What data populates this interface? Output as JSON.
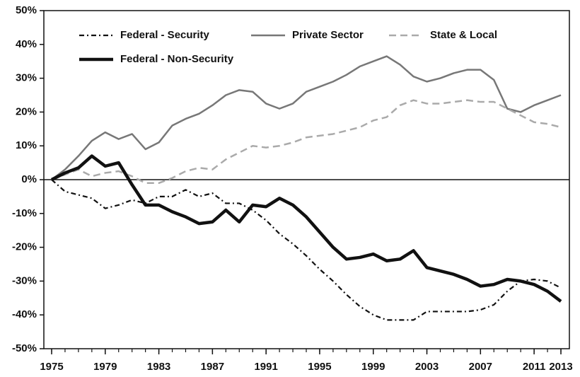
{
  "chart_data": {
    "type": "line",
    "x": [
      1975,
      1976,
      1977,
      1978,
      1979,
      1980,
      1981,
      1982,
      1983,
      1984,
      1985,
      1986,
      1987,
      1988,
      1989,
      1990,
      1991,
      1992,
      1993,
      1994,
      1995,
      1996,
      1997,
      1998,
      1999,
      2000,
      2001,
      2002,
      2003,
      2004,
      2005,
      2006,
      2007,
      2008,
      2009,
      2010,
      2011,
      2012,
      2013
    ],
    "series": [
      {
        "name": "Federal - Security",
        "color": "#111111",
        "style": "dashdot",
        "values": [
          0,
          -3.5,
          -4.5,
          -5.5,
          -8.5,
          -7.5,
          -6,
          -7,
          -5,
          -5,
          -3,
          -5,
          -4,
          -7,
          -7,
          -9,
          -12,
          -16,
          -19,
          -22.5,
          -26.5,
          -30,
          -34,
          -37.5,
          -40,
          -41.5,
          -41.5,
          -41.5,
          -39,
          -39,
          -39,
          -39,
          -38.5,
          -37,
          -33,
          -30,
          -29.5,
          -30,
          -32
        ]
      },
      {
        "name": "Private Sector",
        "color": "#777777",
        "style": "solid",
        "values": [
          0,
          3,
          7,
          11.5,
          14,
          12,
          13.5,
          9,
          11,
          16,
          18,
          19.5,
          22,
          25,
          26.5,
          26,
          22.5,
          21,
          22.5,
          26,
          27.5,
          29,
          31,
          33.5,
          35,
          36.5,
          34,
          30.5,
          29,
          30,
          31.5,
          32.5,
          32.5,
          29.5,
          21,
          20,
          22,
          23.5,
          25
        ]
      },
      {
        "name": "State & Local",
        "color": "#aaaaaa",
        "style": "dashed",
        "values": [
          0,
          1.5,
          3,
          1,
          2,
          2.5,
          1,
          -1,
          -1,
          0.5,
          2.5,
          3.5,
          3,
          6,
          8,
          10,
          9.5,
          10,
          11,
          12.5,
          13,
          13.5,
          14.5,
          15.5,
          17.5,
          18.5,
          22,
          23.5,
          22.5,
          22.5,
          23,
          23.5,
          23,
          23,
          21,
          19,
          17,
          16.5,
          15.5
        ]
      },
      {
        "name": "Federal - Non-Security",
        "color": "#111111",
        "style": "thick",
        "values": [
          0,
          2,
          3.5,
          7,
          4,
          5,
          -1.5,
          -7.5,
          -7.5,
          -9.5,
          -11,
          -13,
          -12.5,
          -9,
          -12.5,
          -7.5,
          -8,
          -5.5,
          -7.5,
          -11,
          -15.5,
          -20,
          -23.5,
          -23,
          -22,
          -24,
          -23.5,
          -21,
          -26,
          -27,
          -28,
          -29.5,
          -31.5,
          -31,
          -29.5,
          -30,
          -31,
          -33,
          -36
        ]
      }
    ],
    "xlim": [
      1975,
      2013
    ],
    "xticks": [
      1975,
      1979,
      1983,
      1987,
      1991,
      1995,
      1999,
      2003,
      2007,
      2011,
      2013
    ],
    "ylim": [
      -50,
      50
    ],
    "yticks": [
      {
        "value": -50,
        "label": "-50%"
      },
      {
        "value": -40,
        "label": "-40%"
      },
      {
        "value": -30,
        "label": "-30%"
      },
      {
        "value": -20,
        "label": "-20%"
      },
      {
        "value": -10,
        "label": "-10%"
      },
      {
        "value": 0,
        "label": "0%"
      },
      {
        "value": 10,
        "label": "10%"
      },
      {
        "value": 20,
        "label": "20%"
      },
      {
        "value": 30,
        "label": "30%"
      },
      {
        "value": 40,
        "label": "40%"
      },
      {
        "value": 50,
        "label": "50%"
      }
    ]
  }
}
